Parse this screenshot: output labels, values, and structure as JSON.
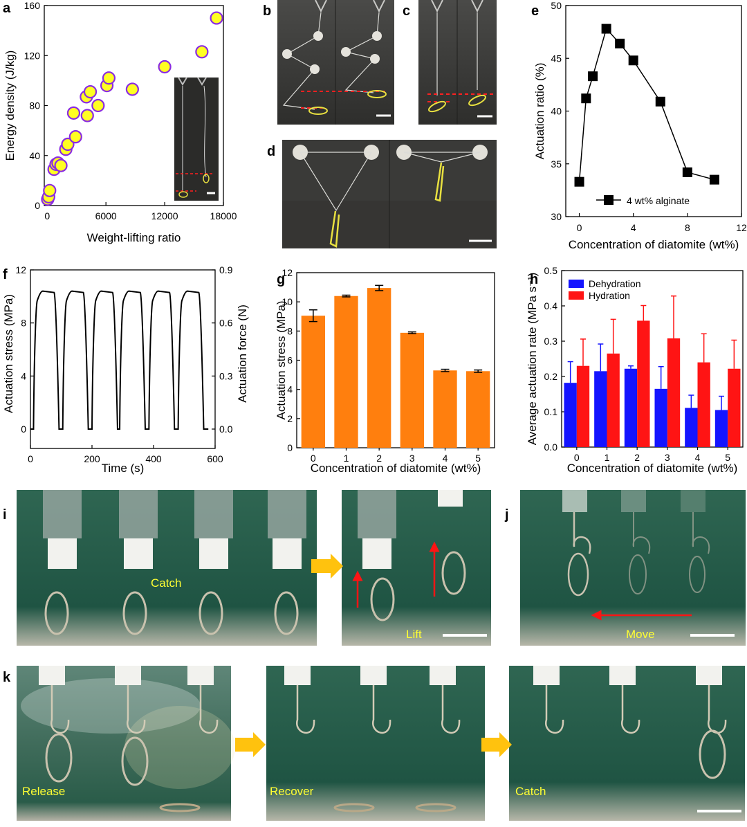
{
  "panels": {
    "a": "a",
    "b": "b",
    "c": "c",
    "d": "d",
    "e": "e",
    "f": "f",
    "g": "g",
    "h": "h",
    "i": "i",
    "j": "j",
    "k": "k"
  },
  "photo_labels": {
    "catch_i": "Catch",
    "lift": "Lift",
    "move": "Move",
    "release": "Release",
    "recover": "Recover",
    "catch_k": "Catch"
  },
  "colors": {
    "orange": "#ff7f0e",
    "blue": "#1414ff",
    "red": "#ff1414",
    "yellow": "#ffff22",
    "purple": "#8a2be2",
    "arrow_yellow": "#ffc20e"
  },
  "chart_data": [
    {
      "id": "a",
      "type": "scatter",
      "xlabel": "Weight-lifting ratio",
      "ylabel": "Energy density (J/kg)",
      "xlim": [
        -300,
        18000
      ],
      "ylim": [
        0,
        160
      ],
      "xticks": [
        0,
        6000,
        12000,
        18000
      ],
      "yticks": [
        0,
        40,
        80,
        120,
        160
      ],
      "points": [
        [
          50,
          5
        ],
        [
          150,
          7
        ],
        [
          250,
          12
        ],
        [
          700,
          29
        ],
        [
          900,
          33
        ],
        [
          1100,
          34
        ],
        [
          1400,
          32
        ],
        [
          1900,
          45
        ],
        [
          2100,
          49
        ],
        [
          2700,
          74
        ],
        [
          2900,
          55
        ],
        [
          4000,
          87
        ],
        [
          4100,
          72
        ],
        [
          4400,
          91
        ],
        [
          5200,
          80
        ],
        [
          6100,
          96
        ],
        [
          6300,
          102
        ],
        [
          8700,
          93
        ],
        [
          12000,
          111
        ],
        [
          15800,
          123
        ],
        [
          17300,
          150
        ]
      ]
    },
    {
      "id": "e",
      "type": "line",
      "xlabel": "Concentration of diatomite (wt%)",
      "ylabel": "Actuation ratio (%)",
      "xlim": [
        -1,
        12
      ],
      "ylim": [
        30,
        50
      ],
      "xticks": [
        0,
        4,
        8,
        12
      ],
      "yticks": [
        30,
        35,
        40,
        45,
        50
      ],
      "legend": "4 wt% alginate",
      "legend_position": "bottom-right",
      "x": [
        0,
        0.5,
        1,
        2,
        3,
        4,
        6,
        8,
        10
      ],
      "y": [
        33.3,
        41.2,
        43.3,
        47.8,
        46.4,
        44.8,
        40.9,
        34.2,
        33.5
      ]
    },
    {
      "id": "f",
      "type": "line",
      "xlabel": "Time (s)",
      "ylabel": "Actuation stress (MPa)",
      "y2label": "Actuation force (N)",
      "xlim": [
        0,
        600
      ],
      "ylim": [
        0,
        12
      ],
      "y2lim": [
        0,
        0.9
      ],
      "xticks": [
        0,
        200,
        400,
        600
      ],
      "yticks": [
        0,
        4,
        8,
        12
      ],
      "y2ticks": [
        "0.0",
        "0.3",
        "0.6",
        "0.9"
      ],
      "cycle_starts_s": [
        10,
        105,
        200,
        290,
        385,
        480
      ],
      "cycle_period_s": 95,
      "peak_stress": 10.4,
      "off_duration_s": 12
    },
    {
      "id": "g",
      "type": "bar",
      "xlabel": "Concentration of diatomite (wt%)",
      "ylabel": "Actuation stress (MPa)",
      "ylim": [
        0,
        12
      ],
      "yticks": [
        0,
        2,
        4,
        6,
        8,
        10,
        12
      ],
      "categories": [
        "0",
        "1",
        "2",
        "3",
        "4",
        "5"
      ],
      "values": [
        9.05,
        10.4,
        10.95,
        7.88,
        5.3,
        5.25
      ],
      "errors": [
        0.4,
        0.06,
        0.18,
        0.06,
        0.08,
        0.08
      ]
    },
    {
      "id": "h",
      "type": "bar",
      "xlabel": "Concentration of diatomite (wt%)",
      "ylabel": "Average actuation rate (MPa s⁻¹)",
      "ylim": [
        0,
        0.5
      ],
      "yticks": [
        "0.0",
        "0.1",
        "0.2",
        "0.3",
        "0.4",
        "0.5"
      ],
      "categories": [
        "0",
        "1",
        "2",
        "3",
        "4",
        "5"
      ],
      "legend_position": "top-left",
      "series": [
        {
          "name": "Dehydration",
          "values": [
            0.182,
            0.215,
            0.222,
            0.165,
            0.111,
            0.105
          ],
          "errors": [
            0.06,
            0.077,
            0.008,
            0.063,
            0.036,
            0.039
          ]
        },
        {
          "name": "Hydration",
          "values": [
            0.23,
            0.265,
            0.358,
            0.308,
            0.24,
            0.222
          ],
          "errors": [
            0.076,
            0.097,
            0.043,
            0.12,
            0.081,
            0.081
          ]
        }
      ]
    }
  ]
}
